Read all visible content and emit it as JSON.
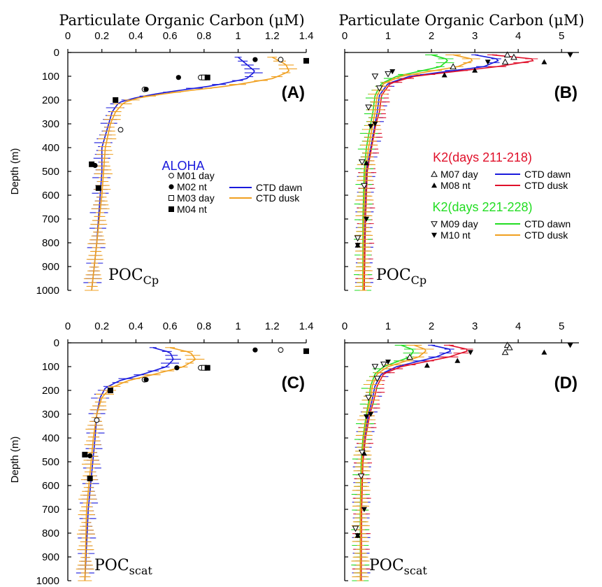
{
  "figure": {
    "top_title_left": "Particulate Organic Carbon (μM)",
    "top_title_right": "Particulate Organic Carbon (μM)",
    "ylabel": "Depth (m)"
  },
  "colors": {
    "ctd_dawn_aloha": "#1a1adc",
    "ctd_dusk_aloha": "#f0a020",
    "k2_early_dawn": "#1a1adc",
    "k2_early_dusk": "#e0102a",
    "k2_late_dawn": "#22dd22",
    "k2_late_dusk": "#f0a020",
    "aloha_text": "#1a1adc",
    "k2_early_text": "#e0102a",
    "k2_late_text": "#22dd22"
  },
  "chart_data": [
    {
      "type": "line",
      "panel": "(A)",
      "label_main": "POC",
      "label_sub": "Cp",
      "xlim": [
        0,
        1.4
      ],
      "x_ticks": [
        "0",
        "0.2",
        "0.4",
        "0.6",
        "0.8",
        "1",
        "1.2",
        "1.4"
      ],
      "ylim": [
        0,
        1000
      ],
      "y_ticks": [
        "0",
        "100",
        "200",
        "300",
        "400",
        "500",
        "600",
        "700",
        "800",
        "900",
        "1000"
      ],
      "legend_title": "ALOHA",
      "legend_points": [
        "M01 day",
        "M02 nt",
        "M03 day",
        "M04 nt"
      ],
      "legend_lines": [
        "CTD dawn",
        "CTD dusk"
      ],
      "series": [
        {
          "name": "CTD dawn",
          "color_key": "ctd_dawn_aloha",
          "x": [
            1.0,
            1.05,
            1.1,
            1.05,
            0.85,
            0.55,
            0.4,
            0.3,
            0.26,
            0.24,
            0.2,
            0.2,
            0.19,
            0.17,
            0.14
          ],
          "y": [
            20,
            50,
            80,
            110,
            140,
            170,
            190,
            210,
            250,
            300,
            400,
            500,
            600,
            800,
            1000
          ]
        },
        {
          "name": "CTD dusk",
          "color_key": "ctd_dusk_aloha",
          "x": [
            1.2,
            1.28,
            1.3,
            1.2,
            0.95,
            0.6,
            0.42,
            0.33,
            0.28,
            0.25,
            0.22,
            0.21,
            0.2,
            0.17,
            0.14
          ],
          "y": [
            20,
            50,
            80,
            110,
            140,
            170,
            190,
            210,
            250,
            300,
            400,
            500,
            600,
            800,
            1000
          ]
        }
      ],
      "points": [
        {
          "name": "M01 day",
          "marker": "open-circle",
          "x": [
            1.25,
            0.78,
            0.45,
            0.31
          ],
          "y": [
            30,
            105,
            155,
            325
          ]
        },
        {
          "name": "M02 nt",
          "marker": "filled-circle",
          "x": [
            1.1,
            0.65,
            0.46,
            0.16
          ],
          "y": [
            30,
            105,
            155,
            475
          ]
        },
        {
          "name": "M03 day",
          "marker": "open-square",
          "x": [
            0.8
          ],
          "y": [
            105
          ]
        },
        {
          "name": "M04 nt",
          "marker": "filled-square",
          "x": [
            1.4,
            0.82,
            0.28,
            0.14,
            0.18
          ],
          "y": [
            35,
            105,
            200,
            470,
            570
          ]
        }
      ]
    },
    {
      "type": "line",
      "panel": "(B)",
      "label_main": "POC",
      "label_sub": "Cp",
      "xlim": [
        0,
        5.4
      ],
      "x_ticks": [
        "0",
        "1",
        "2",
        "3",
        "4",
        "5"
      ],
      "ylim": [
        0,
        1000
      ],
      "y_ticks": [],
      "legend_groups": [
        {
          "title": "K2(days 211-218)",
          "points": [
            "M07 day",
            "M08 nt"
          ],
          "lines": [
            "CTD dawn",
            "CTD dusk"
          ]
        },
        {
          "title": "K2(days 221-228)",
          "points": [
            "M09 day",
            "M10 nt"
          ],
          "lines": [
            "CTD dawn",
            "CTD dusk"
          ]
        }
      ],
      "series": [
        {
          "name": "K2 early CTD dawn",
          "color_key": "k2_early_dawn",
          "x": [
            3.0,
            3.6,
            3.2,
            1.5,
            1.0,
            0.8,
            0.75,
            0.7,
            0.6,
            0.5,
            0.45,
            0.45
          ],
          "y": [
            10,
            30,
            60,
            100,
            130,
            180,
            250,
            300,
            400,
            500,
            700,
            1000
          ]
        },
        {
          "name": "K2 early CTD dusk",
          "color_key": "k2_early_dusk",
          "x": [
            3.4,
            4.5,
            3.5,
            1.6,
            1.05,
            0.85,
            0.8,
            0.72,
            0.62,
            0.52,
            0.48,
            0.45
          ],
          "y": [
            10,
            30,
            60,
            100,
            130,
            180,
            250,
            300,
            400,
            500,
            700,
            1000
          ]
        },
        {
          "name": "K2 late CTD dawn",
          "color_key": "k2_late_dawn",
          "x": [
            2.0,
            2.4,
            2.2,
            1.2,
            0.85,
            0.7,
            0.65,
            0.6,
            0.5,
            0.45,
            0.42,
            0.42
          ],
          "y": [
            10,
            30,
            60,
            100,
            130,
            180,
            250,
            300,
            400,
            500,
            700,
            1000
          ]
        },
        {
          "name": "K2 late CTD dusk",
          "color_key": "k2_late_dusk",
          "x": [
            2.5,
            3.0,
            2.6,
            1.3,
            0.9,
            0.75,
            0.7,
            0.65,
            0.55,
            0.48,
            0.44,
            0.43
          ],
          "y": [
            10,
            30,
            60,
            100,
            130,
            180,
            250,
            300,
            400,
            500,
            700,
            1000
          ]
        }
      ],
      "points": [
        {
          "name": "M07 day",
          "marker": "open-triangle-up",
          "x": [
            3.75,
            3.9,
            3.7,
            2.5
          ],
          "y": [
            10,
            20,
            40,
            60
          ]
        },
        {
          "name": "M08 nt",
          "marker": "filled-triangle-up",
          "x": [
            4.6,
            3.0,
            2.3,
            0.5,
            0.3
          ],
          "y": [
            40,
            75,
            95,
            465,
            810
          ]
        },
        {
          "name": "M09 day",
          "marker": "open-triangle-down",
          "x": [
            1.0,
            0.7,
            0.8,
            0.55,
            0.4,
            0.45,
            0.3
          ],
          "y": [
            90,
            100,
            150,
            230,
            460,
            560,
            780
          ]
        },
        {
          "name": "M10 nt",
          "marker": "filled-triangle-down",
          "x": [
            5.2,
            3.3,
            1.1,
            0.7,
            0.6,
            0.5,
            0.3
          ],
          "y": [
            10,
            40,
            80,
            300,
            310,
            700,
            810
          ]
        }
      ]
    },
    {
      "type": "line",
      "panel": "(C)",
      "label_main": "POC",
      "label_sub": "scat",
      "xlim": [
        0,
        1.4
      ],
      "x_ticks": [
        "0",
        "0.2",
        "0.4",
        "0.6",
        "0.8",
        "1",
        "1.2",
        "1.4"
      ],
      "ylim": [
        0,
        1000
      ],
      "y_ticks": [
        "0",
        "100",
        "200",
        "300",
        "400",
        "500",
        "600",
        "700",
        "800",
        "900",
        "1000"
      ],
      "series": [
        {
          "name": "CTD dawn",
          "color_key": "ctd_dawn_aloha",
          "x": [
            0.5,
            0.6,
            0.62,
            0.58,
            0.45,
            0.3,
            0.22,
            0.19,
            0.17,
            0.16,
            0.14,
            0.12,
            0.1
          ],
          "y": [
            20,
            40,
            70,
            100,
            130,
            160,
            190,
            230,
            300,
            400,
            550,
            700,
            1000
          ]
        },
        {
          "name": "CTD dusk",
          "color_key": "ctd_dusk_aloha",
          "x": [
            0.6,
            0.72,
            0.75,
            0.68,
            0.52,
            0.35,
            0.25,
            0.2,
            0.17,
            0.15,
            0.13,
            0.11,
            0.1
          ],
          "y": [
            20,
            40,
            70,
            100,
            130,
            160,
            190,
            230,
            300,
            400,
            550,
            700,
            1000
          ]
        }
      ],
      "points": [
        {
          "name": "M01 day",
          "marker": "open-circle",
          "x": [
            1.25,
            0.78,
            0.45,
            0.17
          ],
          "y": [
            30,
            105,
            155,
            325
          ]
        },
        {
          "name": "M02 nt",
          "marker": "filled-circle",
          "x": [
            1.1,
            0.64,
            0.46,
            0.13
          ],
          "y": [
            30,
            105,
            155,
            475
          ]
        },
        {
          "name": "M03 day",
          "marker": "open-square",
          "x": [
            0.8
          ],
          "y": [
            105
          ]
        },
        {
          "name": "M04 nt",
          "marker": "filled-square",
          "x": [
            1.4,
            0.82,
            0.25,
            0.1,
            0.13
          ],
          "y": [
            35,
            105,
            200,
            470,
            570
          ]
        }
      ]
    },
    {
      "type": "line",
      "panel": "(D)",
      "label_main": "POC",
      "label_sub": "scat",
      "xlim": [
        0,
        5.4
      ],
      "x_ticks": [
        "0",
        "1",
        "2",
        "3",
        "4",
        "5"
      ],
      "ylim": [
        0,
        1000
      ],
      "y_ticks": [],
      "series": [
        {
          "name": "K2 early CTD dawn",
          "color_key": "k2_early_dawn",
          "x": [
            2.0,
            2.5,
            2.1,
            1.2,
            0.85,
            0.7,
            0.62,
            0.55,
            0.45,
            0.4,
            0.38,
            0.38
          ],
          "y": [
            10,
            30,
            60,
            100,
            130,
            180,
            250,
            300,
            400,
            500,
            700,
            1000
          ]
        },
        {
          "name": "K2 early CTD dusk",
          "color_key": "k2_early_dusk",
          "x": [
            2.4,
            2.9,
            2.4,
            1.3,
            0.9,
            0.75,
            0.66,
            0.58,
            0.48,
            0.42,
            0.39,
            0.38
          ],
          "y": [
            10,
            30,
            60,
            100,
            130,
            180,
            250,
            300,
            400,
            500,
            700,
            1000
          ]
        },
        {
          "name": "K2 late CTD dawn",
          "color_key": "k2_late_dawn",
          "x": [
            1.3,
            1.6,
            1.5,
            0.9,
            0.7,
            0.6,
            0.55,
            0.5,
            0.42,
            0.38,
            0.36,
            0.36
          ],
          "y": [
            10,
            30,
            60,
            100,
            130,
            180,
            250,
            300,
            400,
            500,
            700,
            1000
          ]
        },
        {
          "name": "K2 late CTD dusk",
          "color_key": "k2_late_dusk",
          "x": [
            1.6,
            1.9,
            1.7,
            1.0,
            0.75,
            0.64,
            0.58,
            0.52,
            0.44,
            0.4,
            0.37,
            0.36
          ],
          "y": [
            10,
            30,
            60,
            100,
            130,
            180,
            250,
            300,
            400,
            500,
            700,
            1000
          ]
        }
      ],
      "points": [
        {
          "name": "M07 day",
          "marker": "open-triangle-up",
          "x": [
            3.75,
            3.8,
            3.7,
            1.5
          ],
          "y": [
            10,
            20,
            40,
            60
          ]
        },
        {
          "name": "M08 nt",
          "marker": "filled-triangle-up",
          "x": [
            4.6,
            2.6,
            1.9,
            0.45,
            0.3
          ],
          "y": [
            40,
            75,
            95,
            465,
            810
          ]
        },
        {
          "name": "M09 day",
          "marker": "open-triangle-down",
          "x": [
            0.9,
            0.7,
            0.75,
            0.55,
            0.4,
            0.38,
            0.25
          ],
          "y": [
            90,
            100,
            150,
            230,
            460,
            560,
            780
          ]
        },
        {
          "name": "M10 nt",
          "marker": "filled-triangle-down",
          "x": [
            5.2,
            2.9,
            1.0,
            0.6,
            0.5,
            0.45,
            0.3
          ],
          "y": [
            10,
            40,
            80,
            300,
            310,
            700,
            810
          ]
        }
      ]
    }
  ]
}
